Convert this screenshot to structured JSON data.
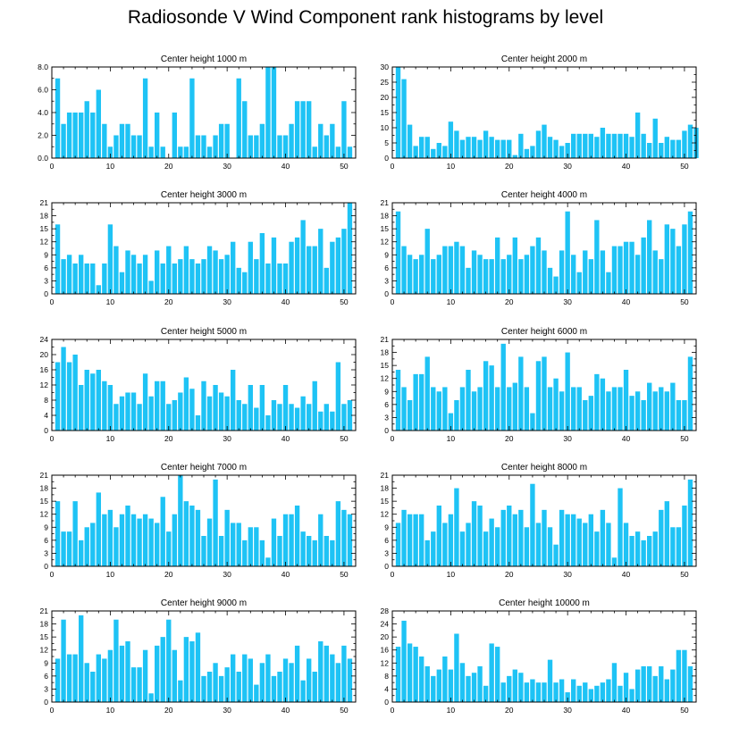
{
  "title": "Radiosonde V Wind Component rank histograms by level",
  "colors": {
    "bar": "#1ec3f5",
    "axis": "#000000",
    "background": "#ffffff"
  },
  "chart_data": [
    {
      "type": "bar",
      "title": "Center height 1000 m",
      "x": "rank",
      "ylim": [
        0,
        8
      ],
      "yticks": [
        0,
        2,
        4,
        6,
        8
      ],
      "yticklabels": [
        "0.0",
        "2.0",
        "4.0",
        "6.0",
        "8.0"
      ],
      "xlim": [
        0,
        52
      ],
      "xticks": [
        0,
        10,
        20,
        30,
        40,
        50
      ],
      "xticklabels": [
        "0",
        "10",
        "20",
        "30",
        "40",
        "50"
      ],
      "values": [
        7,
        3,
        4,
        4,
        4,
        5,
        4,
        6,
        3,
        1,
        2,
        3,
        3,
        2,
        2,
        7,
        1,
        4,
        1,
        0,
        4,
        1,
        1,
        7,
        2,
        2,
        1,
        2,
        3,
        3,
        0,
        7,
        5,
        2,
        2,
        3,
        8,
        8,
        2,
        2,
        3,
        5,
        5,
        5,
        1,
        3,
        2,
        3,
        1,
        5,
        1
      ]
    },
    {
      "type": "bar",
      "title": "Center height 2000 m",
      "ylim": [
        0,
        30
      ],
      "yticks": [
        0,
        5,
        10,
        15,
        20,
        25,
        30
      ],
      "yticklabels": [
        "0",
        "5",
        "10",
        "15",
        "20",
        "25",
        "30"
      ],
      "xlim": [
        0,
        52
      ],
      "xticks": [
        0,
        10,
        20,
        30,
        40,
        50
      ],
      "xticklabels": [
        "0",
        "10",
        "20",
        "30",
        "40",
        "50"
      ],
      "values": [
        30,
        26,
        11,
        4,
        7,
        7,
        3,
        5,
        4,
        12,
        9,
        6,
        7,
        7,
        6,
        9,
        7,
        6,
        6,
        6,
        1,
        8,
        3,
        4,
        9,
        11,
        7,
        6,
        4,
        5,
        8,
        8,
        8,
        8,
        7,
        10,
        8,
        8,
        8,
        8,
        7,
        15,
        8,
        5,
        13,
        5,
        7,
        6,
        6,
        9,
        11,
        10
      ]
    },
    {
      "type": "bar",
      "title": "Center height 3000 m",
      "ylim": [
        0,
        21
      ],
      "yticks": [
        0,
        3,
        6,
        9,
        12,
        15,
        18,
        21
      ],
      "yticklabels": [
        "0",
        "3",
        "6",
        "9",
        "12",
        "15",
        "18",
        "21"
      ],
      "xlim": [
        0,
        52
      ],
      "xticks": [
        0,
        10,
        20,
        30,
        40,
        50
      ],
      "xticklabels": [
        "0",
        "10",
        "20",
        "30",
        "40",
        "50"
      ],
      "values": [
        16,
        8,
        9,
        7,
        9,
        7,
        7,
        2,
        7,
        16,
        11,
        5,
        10,
        9,
        7,
        9,
        3,
        10,
        7,
        11,
        7,
        8,
        11,
        8,
        7,
        8,
        11,
        10,
        8,
        9,
        12,
        6,
        5,
        12,
        8,
        14,
        7,
        13,
        7,
        7,
        12,
        13,
        17,
        11,
        11,
        15,
        6,
        12,
        13,
        15,
        21
      ]
    },
    {
      "type": "bar",
      "title": "Center height 4000 m",
      "ylim": [
        0,
        21
      ],
      "yticks": [
        0,
        3,
        6,
        9,
        12,
        15,
        18,
        21
      ],
      "yticklabels": [
        "0",
        "3",
        "6",
        "9",
        "12",
        "15",
        "18",
        "21"
      ],
      "xlim": [
        0,
        52
      ],
      "xticks": [
        0,
        10,
        20,
        30,
        40,
        50
      ],
      "xticklabels": [
        "0",
        "10",
        "20",
        "30",
        "40",
        "50"
      ],
      "values": [
        19,
        11,
        9,
        8,
        9,
        15,
        8,
        9,
        11,
        11,
        12,
        11,
        6,
        10,
        9,
        8,
        8,
        13,
        8,
        9,
        13,
        8,
        9,
        11,
        13,
        10,
        6,
        4,
        10,
        19,
        9,
        5,
        10,
        8,
        17,
        10,
        5,
        11,
        11,
        12,
        12,
        9,
        13,
        17,
        10,
        8,
        16,
        15,
        11,
        16,
        19
      ]
    },
    {
      "type": "bar",
      "title": "Center height 5000 m",
      "ylim": [
        0,
        24
      ],
      "yticks": [
        0,
        4,
        8,
        12,
        16,
        20,
        24
      ],
      "yticklabels": [
        "0",
        "4",
        "8",
        "12",
        "16",
        "20",
        "24"
      ],
      "xlim": [
        0,
        52
      ],
      "xticks": [
        0,
        10,
        20,
        30,
        40,
        50
      ],
      "xticklabels": [
        "0",
        "10",
        "20",
        "30",
        "40",
        "50"
      ],
      "values": [
        18,
        22,
        18,
        20,
        12,
        16,
        15,
        16,
        13,
        12,
        7,
        9,
        10,
        10,
        7,
        15,
        9,
        13,
        13,
        7,
        8,
        10,
        14,
        11,
        4,
        13,
        9,
        12,
        10,
        9,
        16,
        8,
        7,
        12,
        6,
        12,
        4,
        8,
        7,
        12,
        7,
        6,
        9,
        7,
        13,
        5,
        7,
        5,
        18,
        7,
        8
      ]
    },
    {
      "type": "bar",
      "title": "Center height 6000 m",
      "ylim": [
        0,
        21
      ],
      "yticks": [
        0,
        3,
        6,
        9,
        12,
        15,
        18,
        21
      ],
      "yticklabels": [
        "0",
        "3",
        "6",
        "9",
        "12",
        "15",
        "18",
        "21"
      ],
      "xlim": [
        0,
        52
      ],
      "xticks": [
        0,
        10,
        20,
        30,
        40,
        50
      ],
      "xticklabels": [
        "0",
        "10",
        "20",
        "30",
        "40",
        "50"
      ],
      "values": [
        14,
        10,
        7,
        13,
        13,
        17,
        10,
        9,
        10,
        4,
        7,
        10,
        14,
        9,
        10,
        16,
        15,
        10,
        20,
        10,
        11,
        17,
        10,
        4,
        16,
        17,
        10,
        12,
        9,
        18,
        10,
        10,
        7,
        8,
        13,
        12,
        9,
        10,
        10,
        14,
        8,
        9,
        7,
        11,
        9,
        10,
        9,
        11,
        7,
        7,
        17
      ]
    },
    {
      "type": "bar",
      "title": "Center height 7000 m",
      "ylim": [
        0,
        21
      ],
      "yticks": [
        0,
        3,
        6,
        9,
        12,
        15,
        18,
        21
      ],
      "yticklabels": [
        "0",
        "3",
        "6",
        "9",
        "12",
        "15",
        "18",
        "21"
      ],
      "xlim": [
        0,
        52
      ],
      "xticks": [
        0,
        10,
        20,
        30,
        40,
        50
      ],
      "xticklabels": [
        "0",
        "10",
        "20",
        "30",
        "40",
        "50"
      ],
      "values": [
        15,
        8,
        8,
        15,
        6,
        9,
        10,
        17,
        12,
        13,
        9,
        12,
        14,
        12,
        11,
        12,
        11,
        10,
        16,
        8,
        12,
        21,
        15,
        14,
        13,
        7,
        11,
        20,
        7,
        13,
        10,
        10,
        6,
        9,
        9,
        6,
        2,
        11,
        7,
        12,
        12,
        14,
        8,
        7,
        6,
        12,
        7,
        6,
        15,
        13,
        12
      ]
    },
    {
      "type": "bar",
      "title": "Center height 8000 m",
      "ylim": [
        0,
        21
      ],
      "yticks": [
        0,
        3,
        6,
        9,
        12,
        15,
        18,
        21
      ],
      "yticklabels": [
        "0",
        "3",
        "6",
        "9",
        "12",
        "15",
        "18",
        "21"
      ],
      "xlim": [
        0,
        52
      ],
      "xticks": [
        0,
        10,
        20,
        30,
        40,
        50
      ],
      "xticklabels": [
        "0",
        "10",
        "20",
        "30",
        "40",
        "50"
      ],
      "values": [
        10,
        13,
        12,
        12,
        12,
        6,
        8,
        14,
        10,
        12,
        18,
        8,
        10,
        15,
        14,
        8,
        11,
        9,
        13,
        14,
        12,
        13,
        9,
        19,
        10,
        13,
        9,
        5,
        13,
        12,
        12,
        11,
        10,
        12,
        8,
        13,
        10,
        2,
        18,
        10,
        7,
        8,
        6,
        7,
        8,
        13,
        15,
        9,
        9,
        14,
        20
      ]
    },
    {
      "type": "bar",
      "title": "Center height 9000 m",
      "ylim": [
        0,
        21
      ],
      "yticks": [
        0,
        3,
        6,
        9,
        12,
        15,
        18,
        21
      ],
      "yticklabels": [
        "0",
        "3",
        "6",
        "9",
        "12",
        "15",
        "18",
        "21"
      ],
      "xlim": [
        0,
        52
      ],
      "xticks": [
        0,
        10,
        20,
        30,
        40,
        50
      ],
      "xticklabels": [
        "0",
        "10",
        "20",
        "30",
        "40",
        "50"
      ],
      "values": [
        10,
        19,
        11,
        11,
        20,
        9,
        7,
        11,
        10,
        12,
        19,
        13,
        14,
        8,
        8,
        12,
        2,
        13,
        15,
        19,
        12,
        5,
        15,
        14,
        16,
        6,
        7,
        9,
        6,
        8,
        11,
        7,
        11,
        10,
        4,
        9,
        11,
        6,
        7,
        10,
        9,
        13,
        5,
        10,
        7,
        14,
        13,
        11,
        9,
        13,
        10
      ]
    },
    {
      "type": "bar",
      "title": "Center height 10000 m",
      "ylim": [
        0,
        28
      ],
      "yticks": [
        0,
        4,
        8,
        12,
        16,
        20,
        24,
        28
      ],
      "yticklabels": [
        "0",
        "4",
        "8",
        "12",
        "16",
        "20",
        "24",
        "28"
      ],
      "xlim": [
        0,
        52
      ],
      "xticks": [
        0,
        10,
        20,
        30,
        40,
        50
      ],
      "xticklabels": [
        "0",
        "10",
        "20",
        "30",
        "40",
        "50"
      ],
      "values": [
        17,
        25,
        18,
        17,
        14,
        11,
        8,
        10,
        14,
        10,
        21,
        12,
        8,
        9,
        11,
        5,
        18,
        17,
        6,
        8,
        10,
        9,
        6,
        7,
        6,
        6,
        13,
        6,
        7,
        3,
        7,
        5,
        6,
        4,
        5,
        6,
        7,
        12,
        5,
        9,
        4,
        10,
        11,
        11,
        8,
        11,
        7,
        10,
        16,
        16,
        11
      ]
    }
  ]
}
